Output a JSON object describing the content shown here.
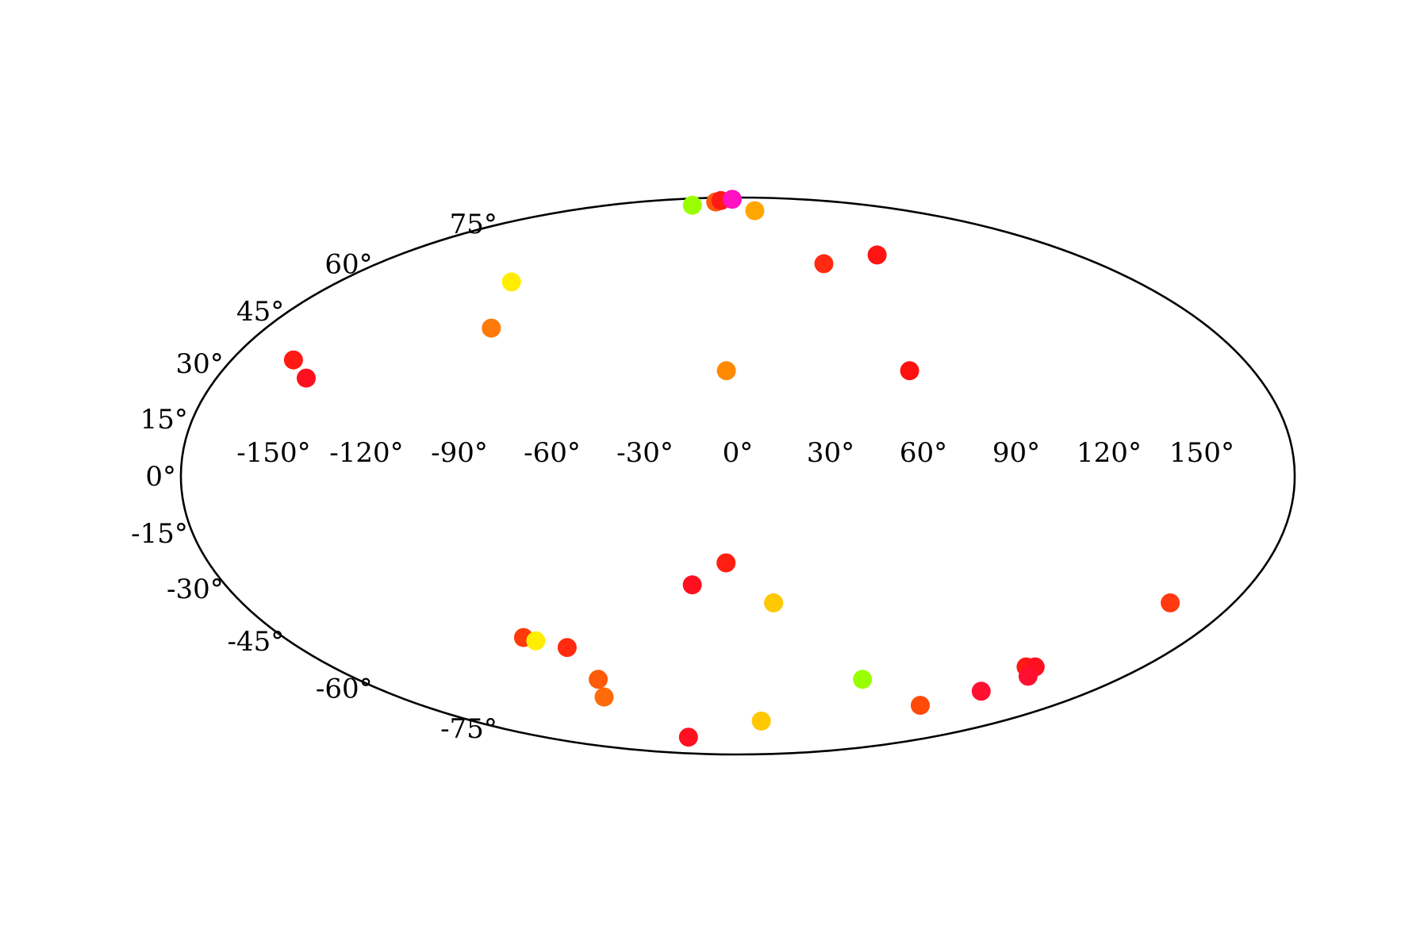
{
  "chart_data": {
    "type": "scatter",
    "projection": "mollweide",
    "title": "",
    "xlabel": "",
    "ylabel": "",
    "xlim": [
      -180,
      180
    ],
    "ylim": [
      -90,
      90
    ],
    "grid": false,
    "legend": "none",
    "x_ticks": [
      "-150°",
      "-120°",
      "-90°",
      "-60°",
      "-30°",
      "0°",
      "30°",
      "60°",
      "90°",
      "120°",
      "150°"
    ],
    "x_tick_values": [
      -150,
      -120,
      -90,
      -60,
      -30,
      0,
      30,
      60,
      90,
      120,
      150
    ],
    "y_ticks": [
      "-75°",
      "-60°",
      "-45°",
      "-30°",
      "-15°",
      "0°",
      "15°",
      "30°",
      "45°",
      "60°",
      "75°"
    ],
    "y_tick_values": [
      -75,
      -60,
      -45,
      -30,
      -15,
      0,
      15,
      30,
      45,
      60,
      75
    ],
    "points": [
      {
        "lon": -158,
        "lat": 31,
        "color": "#ff1a14"
      },
      {
        "lon": -149,
        "lat": 26,
        "color": "#ff1020"
      },
      {
        "lon": -102,
        "lat": 54,
        "color": "#ffee00"
      },
      {
        "lon": -94,
        "lat": 40,
        "color": "#ff7a0a"
      },
      {
        "lon": -63,
        "lat": 84,
        "color": "#99ff00"
      },
      {
        "lon": -40,
        "lat": 86,
        "color": "#ff5a0a"
      },
      {
        "lon": -37,
        "lat": 87,
        "color": "#ff1a14"
      },
      {
        "lon": -16,
        "lat": 88,
        "color": "#ff10c0"
      },
      {
        "lon": 18,
        "lat": 81,
        "color": "#ffa600"
      },
      {
        "lon": 43,
        "lat": 60,
        "color": "#ff2a12"
      },
      {
        "lon": 74,
        "lat": 63,
        "color": "#ff1414"
      },
      {
        "lon": -4,
        "lat": 28,
        "color": "#ff8a00"
      },
      {
        "lon": 60,
        "lat": 28,
        "color": "#ff1010"
      },
      {
        "lon": -4,
        "lat": -23,
        "color": "#ff1f10"
      },
      {
        "lon": -16,
        "lat": -29,
        "color": "#ff1020"
      },
      {
        "lon": 13,
        "lat": -34,
        "color": "#ffc800"
      },
      {
        "lon": 157,
        "lat": -34,
        "color": "#ff3a10"
      },
      {
        "lon": -85,
        "lat": -44,
        "color": "#ff3a0a"
      },
      {
        "lon": -81,
        "lat": -45,
        "color": "#ffee00"
      },
      {
        "lon": -70,
        "lat": -47,
        "color": "#ff2a10"
      },
      {
        "lon": -66,
        "lat": -57,
        "color": "#ff5a0a"
      },
      {
        "lon": -71,
        "lat": -63,
        "color": "#ff6a0a"
      },
      {
        "lon": -46,
        "lat": -79,
        "color": "#ff1020"
      },
      {
        "lon": 16,
        "lat": -72,
        "color": "#ffc800"
      },
      {
        "lon": 59,
        "lat": -57,
        "color": "#99ff00"
      },
      {
        "lon": 104,
        "lat": -66,
        "color": "#ff4a0a"
      },
      {
        "lon": 124,
        "lat": -61,
        "color": "#ff1030"
      },
      {
        "lon": 128,
        "lat": -53,
        "color": "#ff1a14"
      },
      {
        "lon": 132,
        "lat": -53,
        "color": "#ff1020"
      },
      {
        "lon": 135,
        "lat": -56,
        "color": "#ff1030"
      }
    ]
  }
}
